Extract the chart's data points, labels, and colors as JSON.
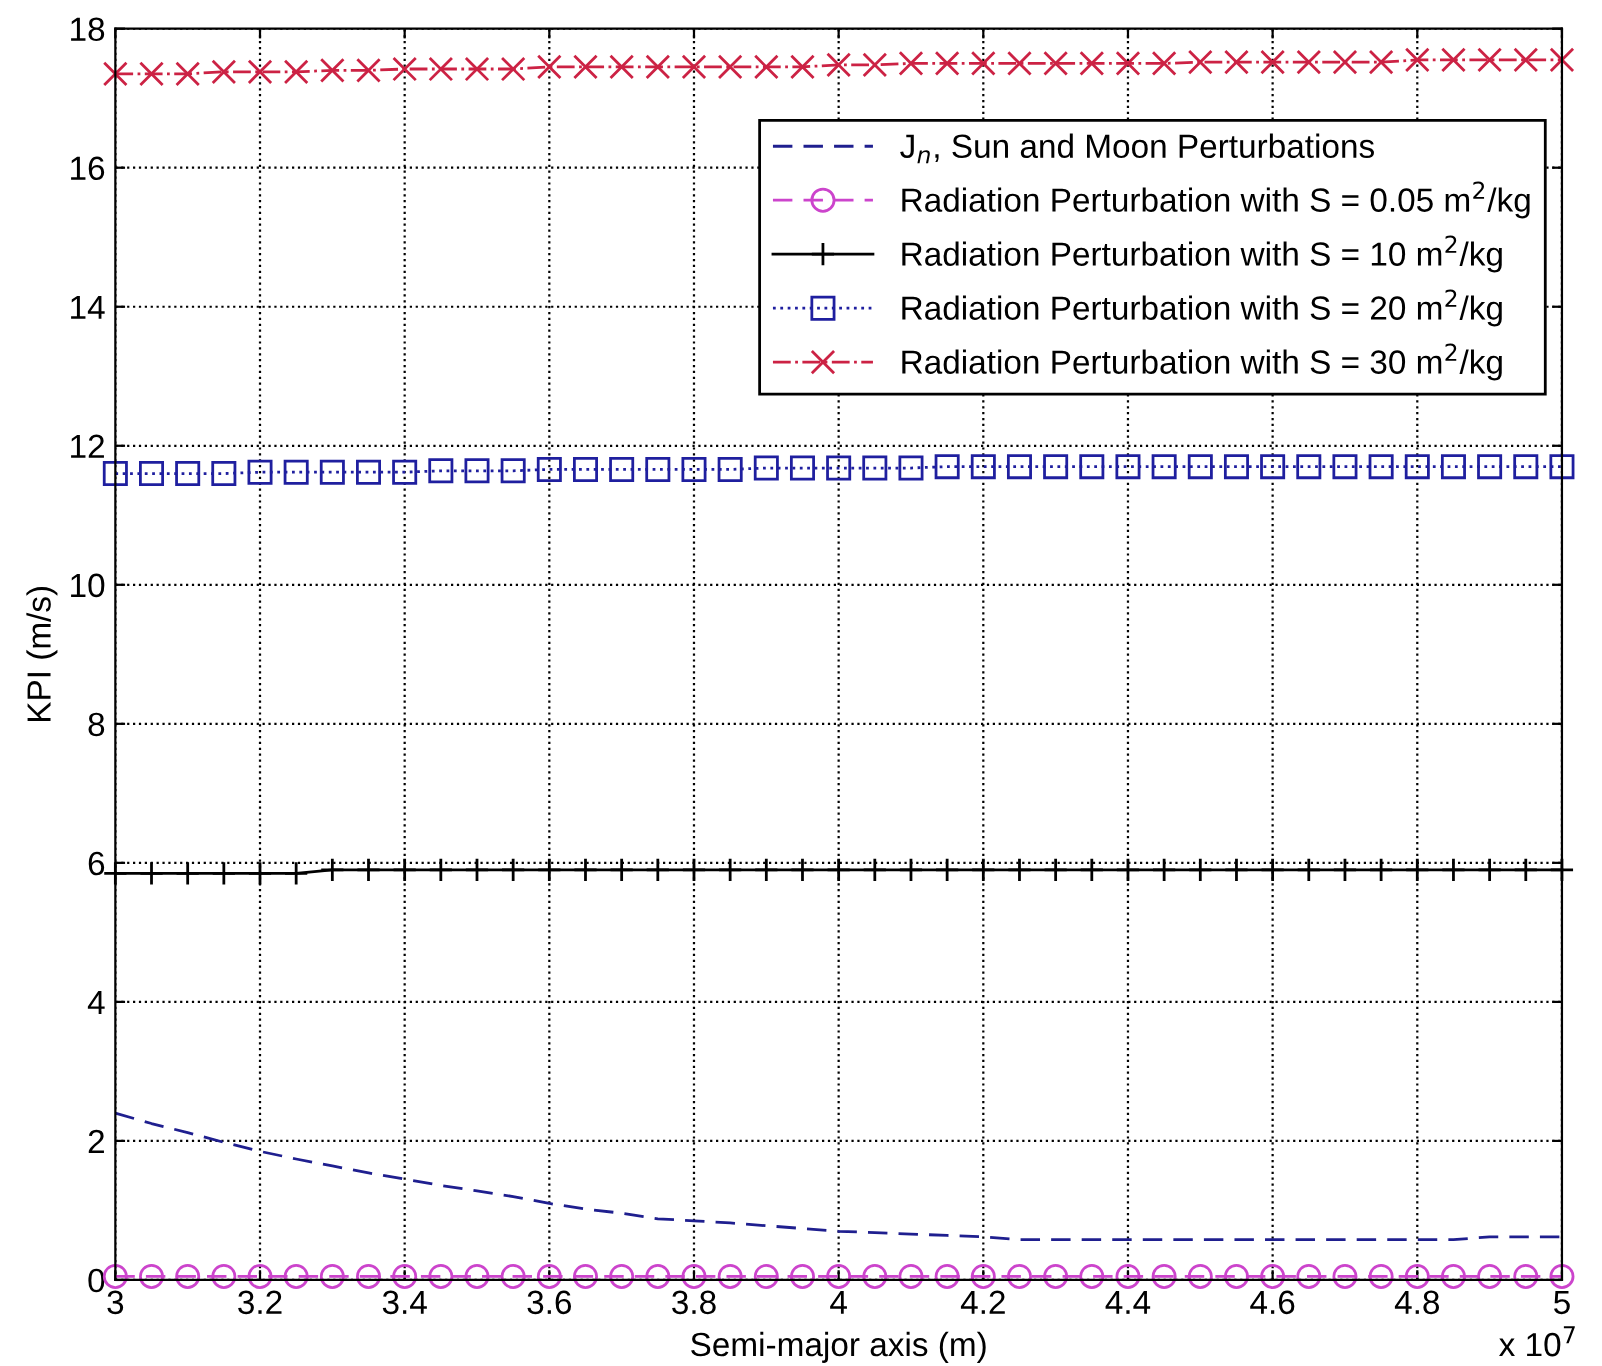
{
  "chart_data": {
    "type": "line",
    "xlabel": "Semi-major axis (m)",
    "ylabel": "KPI (m/s)",
    "annotations": [
      "x 10$^{7}$"
    ],
    "x": [
      3,
      3.05,
      3.1,
      3.15,
      3.2,
      3.25,
      3.3,
      3.35,
      3.4,
      3.45,
      3.5,
      3.55,
      3.6,
      3.65,
      3.7,
      3.75,
      3.8,
      3.85,
      3.9,
      3.95,
      4,
      4.05,
      4.1,
      4.15,
      4.2,
      4.25,
      4.3,
      4.35,
      4.4,
      4.45,
      4.5,
      4.55,
      4.6,
      4.65,
      4.7,
      4.75,
      4.8,
      4.85,
      4.9,
      4.95,
      5
    ],
    "series": [
      {
        "name": "J$_{n}$, Sun and Moon Perturbations",
        "color": "#1f1f8f",
        "line_style": "dashed",
        "marker": "none",
        "values": [
          2.4,
          2.25,
          2.12,
          1.98,
          1.85,
          1.74,
          1.64,
          1.54,
          1.45,
          1.36,
          1.28,
          1.2,
          1.1,
          1.02,
          0.96,
          0.88,
          0.85,
          0.82,
          0.78,
          0.74,
          0.7,
          0.68,
          0.66,
          0.64,
          0.62,
          0.58,
          0.58,
          0.58,
          0.58,
          0.58,
          0.58,
          0.58,
          0.58,
          0.58,
          0.58,
          0.58,
          0.58,
          0.58,
          0.62,
          0.62,
          0.62
        ]
      },
      {
        "name": "Radiation Perturbation with S = 0.05 m$^{2}$/kg",
        "color": "#cc44cc",
        "line_style": "dashed",
        "marker": "circle",
        "values": [
          0.05,
          0.05,
          0.05,
          0.05,
          0.05,
          0.05,
          0.05,
          0.05,
          0.05,
          0.05,
          0.05,
          0.05,
          0.05,
          0.05,
          0.05,
          0.05,
          0.05,
          0.05,
          0.05,
          0.05,
          0.05,
          0.05,
          0.05,
          0.05,
          0.05,
          0.05,
          0.05,
          0.05,
          0.05,
          0.05,
          0.05,
          0.05,
          0.05,
          0.05,
          0.05,
          0.05,
          0.05,
          0.05,
          0.05,
          0.05,
          0.05
        ]
      },
      {
        "name": "Radiation Perturbation with S = 10 m$^{2}$/kg",
        "color": "#000000",
        "line_style": "solid",
        "marker": "plus",
        "values": [
          5.85,
          5.85,
          5.85,
          5.85,
          5.85,
          5.85,
          5.9,
          5.9,
          5.9,
          5.9,
          5.9,
          5.9,
          5.9,
          5.9,
          5.9,
          5.9,
          5.9,
          5.9,
          5.9,
          5.9,
          5.9,
          5.9,
          5.9,
          5.9,
          5.9,
          5.9,
          5.9,
          5.9,
          5.9,
          5.9,
          5.9,
          5.9,
          5.9,
          5.9,
          5.9,
          5.9,
          5.9,
          5.9,
          5.9,
          5.9,
          5.9
        ]
      },
      {
        "name": "Radiation Perturbation with S = 20 m$^{2}$/kg",
        "color": "#1f1f9f",
        "line_style": "dotted",
        "marker": "square",
        "values": [
          11.6,
          11.6,
          11.6,
          11.6,
          11.62,
          11.62,
          11.62,
          11.62,
          11.62,
          11.64,
          11.64,
          11.64,
          11.66,
          11.66,
          11.66,
          11.66,
          11.66,
          11.66,
          11.68,
          11.68,
          11.68,
          11.68,
          11.68,
          11.7,
          11.7,
          11.7,
          11.7,
          11.7,
          11.7,
          11.7,
          11.7,
          11.7,
          11.7,
          11.7,
          11.7,
          11.7,
          11.7,
          11.7,
          11.7,
          11.7,
          11.7
        ]
      },
      {
        "name": "Radiation Perturbation with S = 30 m$^{2}$/kg",
        "color": "#cc2244",
        "line_style": "dashdot",
        "marker": "cross",
        "values": [
          17.35,
          17.35,
          17.35,
          17.38,
          17.38,
          17.38,
          17.4,
          17.4,
          17.42,
          17.42,
          17.42,
          17.42,
          17.45,
          17.45,
          17.45,
          17.45,
          17.45,
          17.45,
          17.45,
          17.45,
          17.48,
          17.48,
          17.5,
          17.5,
          17.5,
          17.5,
          17.5,
          17.5,
          17.5,
          17.5,
          17.52,
          17.52,
          17.52,
          17.52,
          17.52,
          17.52,
          17.55,
          17.55,
          17.55,
          17.55,
          17.55
        ]
      }
    ],
    "xlim": [
      3,
      5
    ],
    "xticks": [
      3,
      3.2,
      3.4,
      3.6,
      3.8,
      4,
      4.2,
      4.4,
      4.6,
      4.8,
      5
    ],
    "ylim": [
      0,
      18
    ],
    "yticks": [
      0,
      2,
      4,
      6,
      8,
      10,
      12,
      14,
      16,
      18
    ],
    "grid": true,
    "legend": "top right"
  }
}
